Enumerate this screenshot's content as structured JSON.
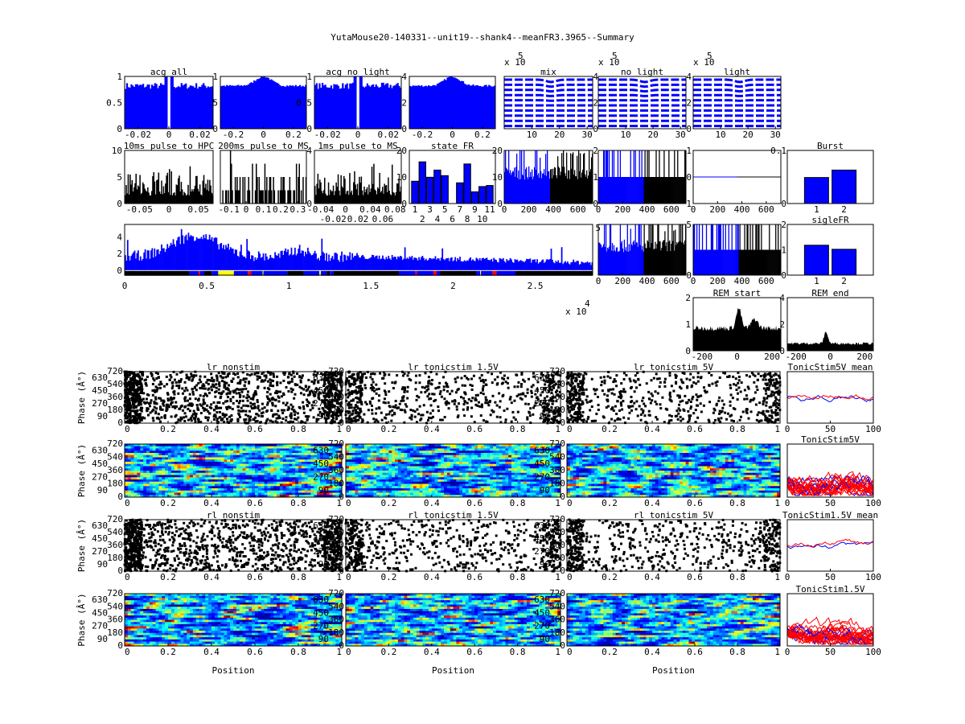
{
  "figure_title": "YutaMouse20-140331--unit19--shank4--meanFR3.3965--Summary",
  "colors": {
    "blue": "#0000ff",
    "black": "#000000",
    "red": "#ff0000",
    "yellow": "#ffff00"
  },
  "chart_data": [
    {
      "id": "acg_all",
      "type": "bar",
      "title": "acg all",
      "xticks": [
        "-0.02",
        "0",
        "0.02"
      ],
      "yticks": [
        "0",
        "0.5",
        "1"
      ],
      "ylim": [
        0,
        1
      ],
      "color": "#0000ff",
      "shape": "acg-refractory"
    },
    {
      "id": "acg_all_wide",
      "type": "bar",
      "title": "",
      "xticks": [
        "-0.2",
        "0",
        "0.2"
      ],
      "yticks": [
        "0",
        ".5",
        "1"
      ],
      "ylim": [
        0,
        1
      ],
      "color": "#0000ff",
      "shape": "acg-peak"
    },
    {
      "id": "acg_nolight",
      "type": "bar",
      "title": "acg no light",
      "xticks": [
        "-0.02",
        "0",
        "0.02"
      ],
      "yticks": [
        "0",
        "0.5",
        "1"
      ],
      "ylim": [
        0,
        1
      ],
      "color": "#0000ff",
      "shape": "acg-refractory"
    },
    {
      "id": "acg_nolight_wide",
      "type": "bar",
      "title": "",
      "xticks": [
        "-0.2",
        "0",
        "0.2"
      ],
      "yticks": [
        "0",
        "2",
        "4"
      ],
      "ylim": [
        0,
        4.4
      ],
      "color": "#0000ff",
      "shape": "acg-peak"
    },
    {
      "id": "wave_mix",
      "type": "line",
      "title": "mix",
      "exponent_label": "x 10",
      "exponent": "5",
      "xticks": [
        "10",
        "20",
        "30"
      ],
      "yticks": [
        "0",
        "2",
        "4"
      ]
    },
    {
      "id": "wave_nolight",
      "type": "line",
      "title": "no light",
      "exponent_label": "x 10",
      "exponent": "5",
      "xticks": [
        "10",
        "20",
        "30"
      ],
      "yticks": [
        "0",
        "2",
        "4"
      ]
    },
    {
      "id": "wave_light",
      "type": "line",
      "title": "light",
      "exponent_label": "x 10",
      "exponent": "5",
      "xticks": [
        "10",
        "20",
        "30"
      ],
      "yticks": []
    },
    {
      "id": "pulse_10ms_hpc",
      "type": "bar",
      "title": "10ms pulse to HPC",
      "xticks": [
        "-0.05",
        "0",
        "0.05"
      ],
      "yticks": [
        "0",
        "5",
        "10"
      ],
      "ylim": [
        0,
        10
      ],
      "color": "#000000"
    },
    {
      "id": "pulse_200ms_ms",
      "type": "bar",
      "title": "200ms pulse to MS",
      "xticks": [
        "-0.1",
        "0",
        "0.1",
        "0.2",
        "0.3"
      ],
      "yticks": [
        "0",
        "",
        "4"
      ],
      "ylim": [
        0,
        4
      ],
      "color": "#000000"
    },
    {
      "id": "pulse_1ms_ms",
      "type": "bar",
      "title": "1ms pulse to MS",
      "xticks": [
        "-0.04",
        "-0.02",
        "0",
        "0.02",
        "0.04",
        "0.06",
        "0.08"
      ],
      "yticks": [
        "0",
        "10",
        "20"
      ],
      "ylim": [
        0,
        20
      ],
      "color": "#000000"
    },
    {
      "id": "state_fr",
      "type": "bar",
      "title": "state FR",
      "categories": [
        "1",
        "2",
        "3",
        "4",
        "5",
        "6",
        "7",
        "8",
        "9",
        "10",
        "11"
      ],
      "values": [
        8.4,
        15.7,
        9.9,
        12.6,
        10.5,
        0,
        7.8,
        14.9,
        4.4,
        6.4,
        6.8
      ],
      "yticks": [
        "0",
        "5",
        "10"
      ],
      "right_yticks": [
        "0",
        "10",
        "20"
      ],
      "ylim": [
        0,
        20
      ],
      "color": "#0000ff"
    },
    {
      "id": "isi_mix",
      "type": "bar",
      "title": "",
      "xticks": [
        "0",
        "200",
        "400",
        "600"
      ],
      "yticks": [
        "0",
        "1",
        "2"
      ],
      "ylim": [
        0,
        2
      ],
      "split_at": 370
    },
    {
      "id": "isi_nolight",
      "type": "bar",
      "title": "",
      "xticks": [
        "0",
        "200",
        "400",
        "600"
      ],
      "yticks": [
        "1",
        "0",
        "1"
      ],
      "ylim": [
        0,
        1
      ],
      "split_at": 370
    },
    {
      "id": "isi_light",
      "type": "line",
      "title": "",
      "xticks": [
        "0",
        "200",
        "400",
        "600"
      ],
      "yticks": [
        "0",
        "",
        "0.1"
      ]
    },
    {
      "id": "burst",
      "type": "bar",
      "title": "Burst",
      "categories": [
        "1",
        "2"
      ],
      "values": [
        0.49,
        0.63
      ],
      "ylim": [
        0,
        1
      ],
      "color": "#0000ff"
    },
    {
      "id": "fr_timecourse",
      "type": "bar",
      "title": "",
      "xticks": [
        "0",
        "0.5",
        "1",
        "1.5",
        "2",
        "2.5"
      ],
      "x_exponent_label": "x 10",
      "x_exponent": "4",
      "yticks": [
        "0",
        "2",
        "4"
      ],
      "right_yticks": [
        "0",
        "",
        "5"
      ],
      "xlim": [
        0,
        28500
      ],
      "ylim": [
        -0.6,
        5.5
      ],
      "color": "#0000ff",
      "state_bar": [
        [
          "black",
          0,
          3950
        ],
        [
          "blue",
          3950,
          4500
        ],
        [
          "red",
          4500,
          4600
        ],
        [
          "blue",
          4600,
          4850
        ],
        [
          "black",
          4850,
          5300
        ],
        [
          "blue",
          5300,
          5700
        ],
        [
          "yellow",
          5700,
          6650
        ],
        [
          "blue",
          6650,
          7500
        ],
        [
          "red",
          7500,
          7700
        ],
        [
          "blue",
          7700,
          8400
        ],
        [
          "yellow",
          8400,
          8450
        ],
        [
          "blue",
          8450,
          9900
        ],
        [
          "black",
          9900,
          10900
        ],
        [
          "blue",
          10900,
          11850
        ],
        [
          "yellow",
          11850,
          11950
        ],
        [
          "blue",
          11950,
          12300
        ],
        [
          "black",
          12300,
          12500
        ],
        [
          "blue",
          12500,
          12700
        ],
        [
          "black",
          12700,
          16700
        ],
        [
          "blue",
          16700,
          17700
        ],
        [
          "red",
          17700,
          17800
        ],
        [
          "blue",
          17800,
          18800
        ],
        [
          "red",
          18800,
          19000
        ],
        [
          "blue",
          19000,
          19200
        ],
        [
          "black",
          19200,
          21400
        ],
        [
          "blue",
          21400,
          21650
        ],
        [
          "yellow",
          21650,
          21700
        ],
        [
          "blue",
          21700,
          22400
        ],
        [
          "red",
          22400,
          22650
        ],
        [
          "blue",
          22650,
          23800
        ],
        [
          "black",
          23800,
          28500
        ]
      ]
    },
    {
      "id": "isi2_mix",
      "type": "bar",
      "title": "",
      "xticks": [
        "0",
        "200",
        "400",
        "600"
      ],
      "yticks": [
        "0",
        "",
        "5"
      ],
      "ylim": [
        0,
        5
      ],
      "split_at": 370
    },
    {
      "id": "isi2_nolight",
      "type": "bar",
      "title": "",
      "xticks": [
        "0",
        "200",
        "400",
        "600"
      ],
      "yticks": [
        "0",
        "1",
        "2"
      ],
      "ylim": [
        0,
        2
      ],
      "split_at": 370
    },
    {
      "id": "sigle_fr",
      "type": "bar",
      "title": "sigleFR",
      "categories": [
        "1",
        "2"
      ],
      "values": [
        0.59,
        0.51
      ],
      "ylim": [
        0,
        1
      ],
      "color": "#0000ff"
    },
    {
      "id": "rem_start",
      "type": "area",
      "title": "REM start",
      "xticks": [
        "-200",
        "0",
        "200"
      ],
      "yticks": [
        "0",
        "1",
        "2"
      ],
      "ylim": [
        0,
        2
      ],
      "color": "#000000"
    },
    {
      "id": "rem_end",
      "type": "area",
      "title": "REM end",
      "xticks": [
        "-200",
        "0",
        "200"
      ],
      "yticks": [
        "0",
        "2",
        "4"
      ],
      "ylim": [
        0,
        4
      ],
      "color": "#000000"
    },
    {
      "id": "lr_nonstim",
      "type": "scatter",
      "title": "lr nonstim"
    },
    {
      "id": "lr_tonic15",
      "type": "scatter",
      "title": "lr tonicstim 1.5V"
    },
    {
      "id": "lr_tonic5",
      "type": "scatter",
      "title": "lr tonicstim 5V"
    },
    {
      "id": "tonic5_mean",
      "type": "line",
      "title": "TonicStim5V mean",
      "xticks": [
        "0",
        "50",
        "100"
      ]
    },
    {
      "id": "lr_nonstim_map",
      "type": "heatmap",
      "title": ""
    },
    {
      "id": "lr_tonic15_map",
      "type": "heatmap",
      "title": ""
    },
    {
      "id": "lr_tonic5_map",
      "type": "heatmap",
      "title": ""
    },
    {
      "id": "tonic5_trials",
      "type": "line",
      "title": "TonicStim5V",
      "xticks": [
        "0",
        "50",
        "100"
      ]
    },
    {
      "id": "rl_nonstim",
      "type": "scatter",
      "title": "rl nonstim"
    },
    {
      "id": "rl_tonic15",
      "type": "scatter",
      "title": "rl tonicstim 1.5V"
    },
    {
      "id": "rl_tonic5",
      "type": "scatter",
      "title": "rl tonicstim 5V"
    },
    {
      "id": "tonic15_mean",
      "type": "line",
      "title": "TonicStim1.5V mean",
      "xticks": [
        "0",
        "50",
        "100"
      ]
    },
    {
      "id": "rl_nonstim_map",
      "type": "heatmap",
      "title": "",
      "xlabel": "Position"
    },
    {
      "id": "rl_tonic15_map",
      "type": "heatmap",
      "title": "",
      "xlabel": "Position"
    },
    {
      "id": "rl_tonic5_map",
      "type": "heatmap",
      "title": "",
      "xlabel": "Position"
    },
    {
      "id": "tonic15_trials",
      "type": "line",
      "title": "TonicStim1.5V",
      "xticks": [
        "0",
        "50",
        "100"
      ]
    }
  ],
  "phase_axis": {
    "ylabel": "Phase (Â°)",
    "yticks": [
      "0",
      "90",
      "180",
      "270",
      "360",
      "450",
      "540",
      "630",
      "720"
    ],
    "ylim": [
      0,
      720
    ],
    "xticks": [
      "0",
      "0.2",
      "0.4",
      "0.6",
      "0.8",
      "1"
    ],
    "xlim": [
      0,
      1
    ]
  }
}
